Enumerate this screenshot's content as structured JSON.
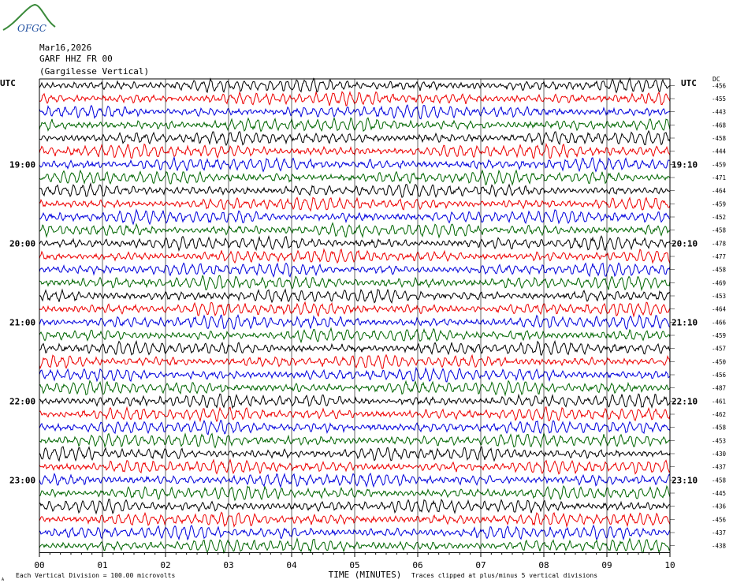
{
  "logo": {
    "text": "OFGC"
  },
  "header": {
    "date": "Mar16,2026",
    "station": "GARF HHZ FR 00",
    "site": "(Gargilesse Vertical)"
  },
  "labels": {
    "utc_left": "UTC",
    "utc_right": "UTC",
    "dc_header": "DC",
    "footer_left": "Each Vertical Division =  100.00 microvolts",
    "footer_right": "Traces clipped at plus/minus 5 vertical divisions",
    "footer_mark": "A"
  },
  "colors": {
    "trace_cycle": [
      "#000000",
      "#ee0000",
      "#0000dd",
      "#006600"
    ],
    "logo": "#3a8a3a"
  },
  "chart_data": {
    "type": "line",
    "title": "GARF HHZ FR 00 (Gargilesse Vertical)",
    "xlabel": "TIME (MINUTES)",
    "ylabel": "UTC",
    "xlim": [
      0,
      10
    ],
    "x_ticks": [
      "00",
      "01",
      "02",
      "03",
      "04",
      "05",
      "06",
      "07",
      "08",
      "09",
      "10"
    ],
    "left_hour_labels": [
      {
        "row": 6,
        "label": "19:00"
      },
      {
        "row": 12,
        "label": "20:00"
      },
      {
        "row": 18,
        "label": "21:00"
      },
      {
        "row": 24,
        "label": "22:00"
      },
      {
        "row": 30,
        "label": "23:00"
      }
    ],
    "right_hour_labels": [
      {
        "row": 6,
        "label": "19:10"
      },
      {
        "row": 12,
        "label": "20:10"
      },
      {
        "row": 18,
        "label": "21:10"
      },
      {
        "row": 24,
        "label": "22:10"
      },
      {
        "row": 30,
        "label": "23:10"
      }
    ],
    "trace_count": 36,
    "dc_offsets": [
      -456,
      -455,
      -443,
      -468,
      -458,
      -444,
      -459,
      -471,
      -464,
      -459,
      -452,
      -458,
      -478,
      -477,
      -458,
      -469,
      -453,
      -464,
      -466,
      -459,
      -457,
      -450,
      -456,
      -487,
      -461,
      -462,
      -458,
      -453,
      -430,
      -437,
      -458,
      -445,
      -436,
      -456,
      -437,
      -438
    ],
    "grid": true
  }
}
